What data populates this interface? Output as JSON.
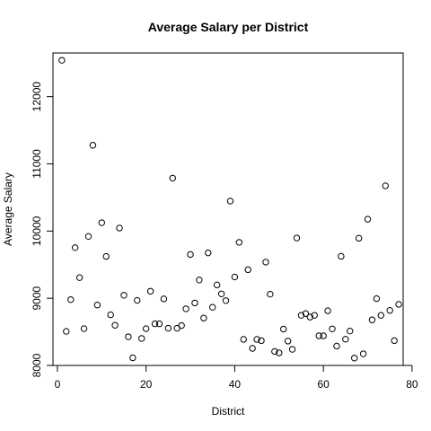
{
  "chart_data": {
    "type": "scatter",
    "title": "Average Salary per District",
    "xlabel": "District",
    "ylabel": "Average Salary",
    "xlim": [
      -1,
      78
    ],
    "ylim": [
      8000,
      12650
    ],
    "xticks": [
      0,
      20,
      40,
      60,
      80
    ],
    "yticks": [
      8000,
      9000,
      10000,
      11000,
      12000
    ],
    "grid": false,
    "x": [
      1,
      2,
      3,
      4,
      5,
      6,
      7,
      8,
      9,
      10,
      11,
      12,
      13,
      14,
      15,
      16,
      17,
      18,
      19,
      20,
      21,
      22,
      23,
      24,
      25,
      26,
      27,
      28,
      29,
      30,
      31,
      32,
      33,
      34,
      35,
      36,
      37,
      38,
      39,
      40,
      41,
      42,
      43,
      44,
      45,
      46,
      47,
      48,
      49,
      50,
      51,
      52,
      53,
      54,
      55,
      56,
      57,
      58,
      59,
      60,
      61,
      62,
      63,
      64,
      65,
      66,
      67,
      68,
      69,
      70,
      71,
      72,
      73,
      74,
      75,
      76,
      77
    ],
    "y": [
      12541,
      8507,
      8980,
      9753,
      9307,
      8547,
      9920,
      11277,
      8899,
      10124,
      9622,
      8754,
      8598,
      10045,
      9045,
      8427,
      8114,
      8968,
      8402,
      8547,
      9104,
      8620,
      8620,
      8991,
      8554,
      10787,
      8554,
      8594,
      8843,
      9652,
      8930,
      9272,
      8705,
      9675,
      8866,
      9198,
      9065,
      8965,
      10446,
      9317,
      9832,
      8388,
      9425,
      8254,
      8388,
      8369,
      9538,
      9060,
      8208,
      8187,
      8541,
      8363,
      8240,
      9897,
      8746,
      8772,
      8720,
      8746,
      8441,
      8441,
      8814,
      8544,
      8288,
      9624,
      8390,
      8512,
      8110,
      9893,
      8173,
      10177,
      8678,
      8994,
      8745,
      10673,
      8819,
      8369,
      8909
    ]
  }
}
